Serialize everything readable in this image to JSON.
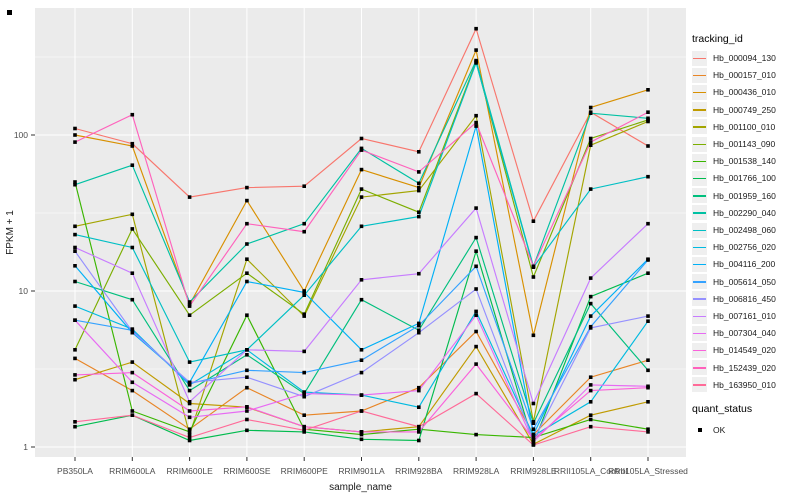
{
  "chart_data": {
    "type": "line",
    "title": "",
    "xlabel": "sample_name",
    "ylabel": "FPKM + 1",
    "y_scale": "log10",
    "ylim": [
      1,
      600
    ],
    "y_ticks": [
      "1",
      "10",
      "100"
    ],
    "grid": "on",
    "legend_position": "right",
    "panel_bg": "#ebebeb",
    "grid_color": "#ffffff",
    "point_marker": "black-square",
    "point_color": "#000000",
    "categories": [
      "PB350LA",
      "RRIM600LA",
      "RRIM600LE",
      "RRIM600SE",
      "RRIM600PE",
      "RRIM901LA",
      "RRIM928BA",
      "RRIM928LA",
      "RRIM928LE",
      "RRII105LA_Control",
      "RRII105LA_Stressed"
    ],
    "legend_title": "tracking_id",
    "series": [
      {
        "name": "Hb_000094_130",
        "color": "#F8766D",
        "values": [
          110,
          88,
          40,
          46,
          47,
          95,
          78,
          480,
          28,
          140,
          85
        ]
      },
      {
        "name": "Hb_000157_010",
        "color": "#E88526",
        "values": [
          3.7,
          2.3,
          1.3,
          2.4,
          1.6,
          1.7,
          2.4,
          5.5,
          1.2,
          2.8,
          3.6
        ]
      },
      {
        "name": "Hb_000436_010",
        "color": "#D89000",
        "values": [
          100,
          85,
          8.2,
          38,
          10,
          60,
          46,
          350,
          5.2,
          150,
          195
        ]
      },
      {
        "name": "Hb_000749_250",
        "color": "#C09B00",
        "values": [
          2.7,
          3.5,
          1.9,
          1.8,
          1.35,
          1.25,
          1.35,
          4.4,
          1.04,
          1.6,
          1.95
        ]
      },
      {
        "name": "Hb_001100_010",
        "color": "#A3A500",
        "values": [
          26,
          31,
          1.2,
          16,
          6.9,
          40,
          44,
          133,
          1.45,
          86,
          122
        ]
      },
      {
        "name": "Hb_001143_090",
        "color": "#7CAE00",
        "values": [
          4.2,
          25,
          7.0,
          13,
          7.1,
          45,
          32,
          295,
          12.3,
          95,
          125
        ]
      },
      {
        "name": "Hb_001538_140",
        "color": "#39B600",
        "values": [
          50,
          1.7,
          1.25,
          7.0,
          1.3,
          1.2,
          1.3,
          1.2,
          1.15,
          1.5,
          1.3
        ]
      },
      {
        "name": "Hb_001766_100",
        "color": "#00BB4E",
        "values": [
          1.35,
          1.6,
          1.1,
          1.28,
          1.25,
          1.12,
          1.1,
          18,
          1.05,
          9.2,
          13
        ]
      },
      {
        "name": "Hb_001959_160",
        "color": "#00BF7D",
        "values": [
          11.5,
          8.8,
          2.3,
          3.9,
          2.2,
          8.8,
          5.6,
          22,
          1.42,
          8.3,
          3.1
        ]
      },
      {
        "name": "Hb_002290_040",
        "color": "#00C1A3",
        "values": [
          48,
          64,
          8.5,
          20,
          27,
          82,
          49,
          300,
          14.4,
          138,
          128
        ]
      },
      {
        "name": "Hb_002498_060",
        "color": "#00BFC4",
        "values": [
          23,
          19,
          3.5,
          4.2,
          9.4,
          26,
          30,
          290,
          14.2,
          45,
          54
        ]
      },
      {
        "name": "Hb_002756_020",
        "color": "#00BAE0",
        "values": [
          8.0,
          5.7,
          2.5,
          4.2,
          2.25,
          2.15,
          1.8,
          7.4,
          1.18,
          1.95,
          6.4
        ]
      },
      {
        "name": "Hb_004116_200",
        "color": "#00B0F6",
        "values": [
          14.5,
          5.4,
          2.6,
          11.5,
          9.8,
          4.2,
          6.2,
          114,
          1.2,
          6.9,
          16
        ]
      },
      {
        "name": "Hb_005614_050",
        "color": "#35A2FF",
        "values": [
          6.5,
          5.6,
          2.55,
          3.1,
          3.0,
          3.6,
          6.0,
          14.4,
          1.3,
          5.9,
          15.8
        ]
      },
      {
        "name": "Hb_006816_450",
        "color": "#9590FF",
        "values": [
          18,
          5.5,
          2.6,
          2.8,
          2.1,
          3.0,
          5.4,
          10.3,
          1.1,
          5.8,
          6.9
        ]
      },
      {
        "name": "Hb_007161_010",
        "color": "#C77CFF",
        "values": [
          19,
          13,
          1.95,
          4.2,
          4.1,
          11.8,
          12.9,
          34,
          1.9,
          12.1,
          27
        ]
      },
      {
        "name": "Hb_007304_040",
        "color": "#E76BF3",
        "values": [
          6.5,
          2.6,
          1.55,
          1.7,
          2.2,
          2.15,
          2.3,
          7.0,
          1.08,
          2.5,
          2.45
        ]
      },
      {
        "name": "Hb_014549_020",
        "color": "#FA62DB",
        "values": [
          2.9,
          3.0,
          1.7,
          1.81,
          1.35,
          1.25,
          1.25,
          3.4,
          1.12,
          2.3,
          2.4
        ]
      },
      {
        "name": "Hb_152439_020",
        "color": "#FF62BC",
        "values": [
          90,
          135,
          8.0,
          27,
          24,
          80,
          58,
          120,
          14.4,
          90,
          140
        ]
      },
      {
        "name": "Hb_163950_010",
        "color": "#FF6A98",
        "values": [
          1.45,
          1.6,
          1.15,
          1.5,
          1.28,
          1.7,
          1.35,
          2.2,
          1.03,
          1.35,
          1.25
        ]
      }
    ],
    "legend2_title": "quant_status",
    "legend2_items": [
      {
        "label": "OK",
        "marker": "black-square"
      }
    ]
  }
}
